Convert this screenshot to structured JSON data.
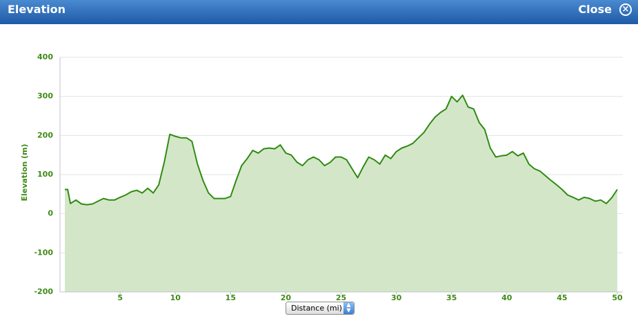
{
  "window": {
    "title": "Elevation",
    "close": "Close"
  },
  "chart_data": {
    "type": "area",
    "ylabel": "Elevation (m)",
    "xlabel": "Distance (mi)",
    "x": [
      0,
      0.25,
      0.5,
      1,
      1.5,
      2,
      2.5,
      3,
      3.5,
      4,
      4.5,
      5,
      5.5,
      6,
      6.5,
      7,
      7.5,
      8,
      8.5,
      9,
      9.5,
      10,
      10.5,
      11,
      11.5,
      12,
      12.5,
      13,
      13.5,
      14,
      14.5,
      15,
      15.5,
      16,
      16.5,
      17,
      17.5,
      18,
      18.5,
      19,
      19.5,
      20,
      20.5,
      21,
      21.5,
      22,
      22.5,
      23,
      23.5,
      24,
      24.5,
      25,
      25.5,
      26,
      26.5,
      27,
      27.5,
      28,
      28.5,
      29,
      29.5,
      30,
      30.5,
      31,
      31.5,
      32,
      32.5,
      33,
      33.5,
      34,
      34.5,
      35,
      35.5,
      36,
      36.5,
      37,
      37.5,
      38,
      38.5,
      39,
      39.5,
      40,
      40.5,
      41,
      41.5,
      42,
      42.5,
      43,
      43.5,
      44,
      44.5,
      45,
      45.5,
      46,
      46.5,
      47,
      47.5,
      48,
      48.5,
      49,
      49.5,
      50
    ],
    "values": [
      62,
      62,
      26,
      35,
      25,
      23,
      25,
      32,
      39,
      35,
      35,
      42,
      48,
      56,
      60,
      53,
      65,
      53,
      74,
      132,
      203,
      198,
      194,
      194,
      185,
      127,
      85,
      53,
      39,
      39,
      39,
      44,
      85,
      123,
      141,
      162,
      155,
      166,
      168,
      166,
      176,
      155,
      150,
      132,
      123,
      138,
      145,
      138,
      123,
      131,
      145,
      145,
      138,
      115,
      92,
      120,
      145,
      138,
      127,
      150,
      141,
      159,
      168,
      173,
      180,
      194,
      208,
      229,
      247,
      259,
      268,
      300,
      286,
      303,
      273,
      268,
      233,
      215,
      168,
      145,
      148,
      150,
      159,
      148,
      155,
      127,
      115,
      109,
      97,
      85,
      74,
      62,
      48,
      42,
      35,
      42,
      39,
      32,
      35,
      26,
      41,
      62
    ],
    "color": "#2f8a12",
    "fill": "#d3e7c8",
    "xlim": [
      -0.44,
      50.5
    ],
    "ylim": [
      -200,
      400
    ],
    "xticks": [
      5,
      10,
      15,
      20,
      25,
      30,
      35,
      40,
      45,
      50
    ],
    "yticks": [
      -200,
      -100,
      0,
      100,
      200,
      300,
      400
    ],
    "grid": true
  }
}
